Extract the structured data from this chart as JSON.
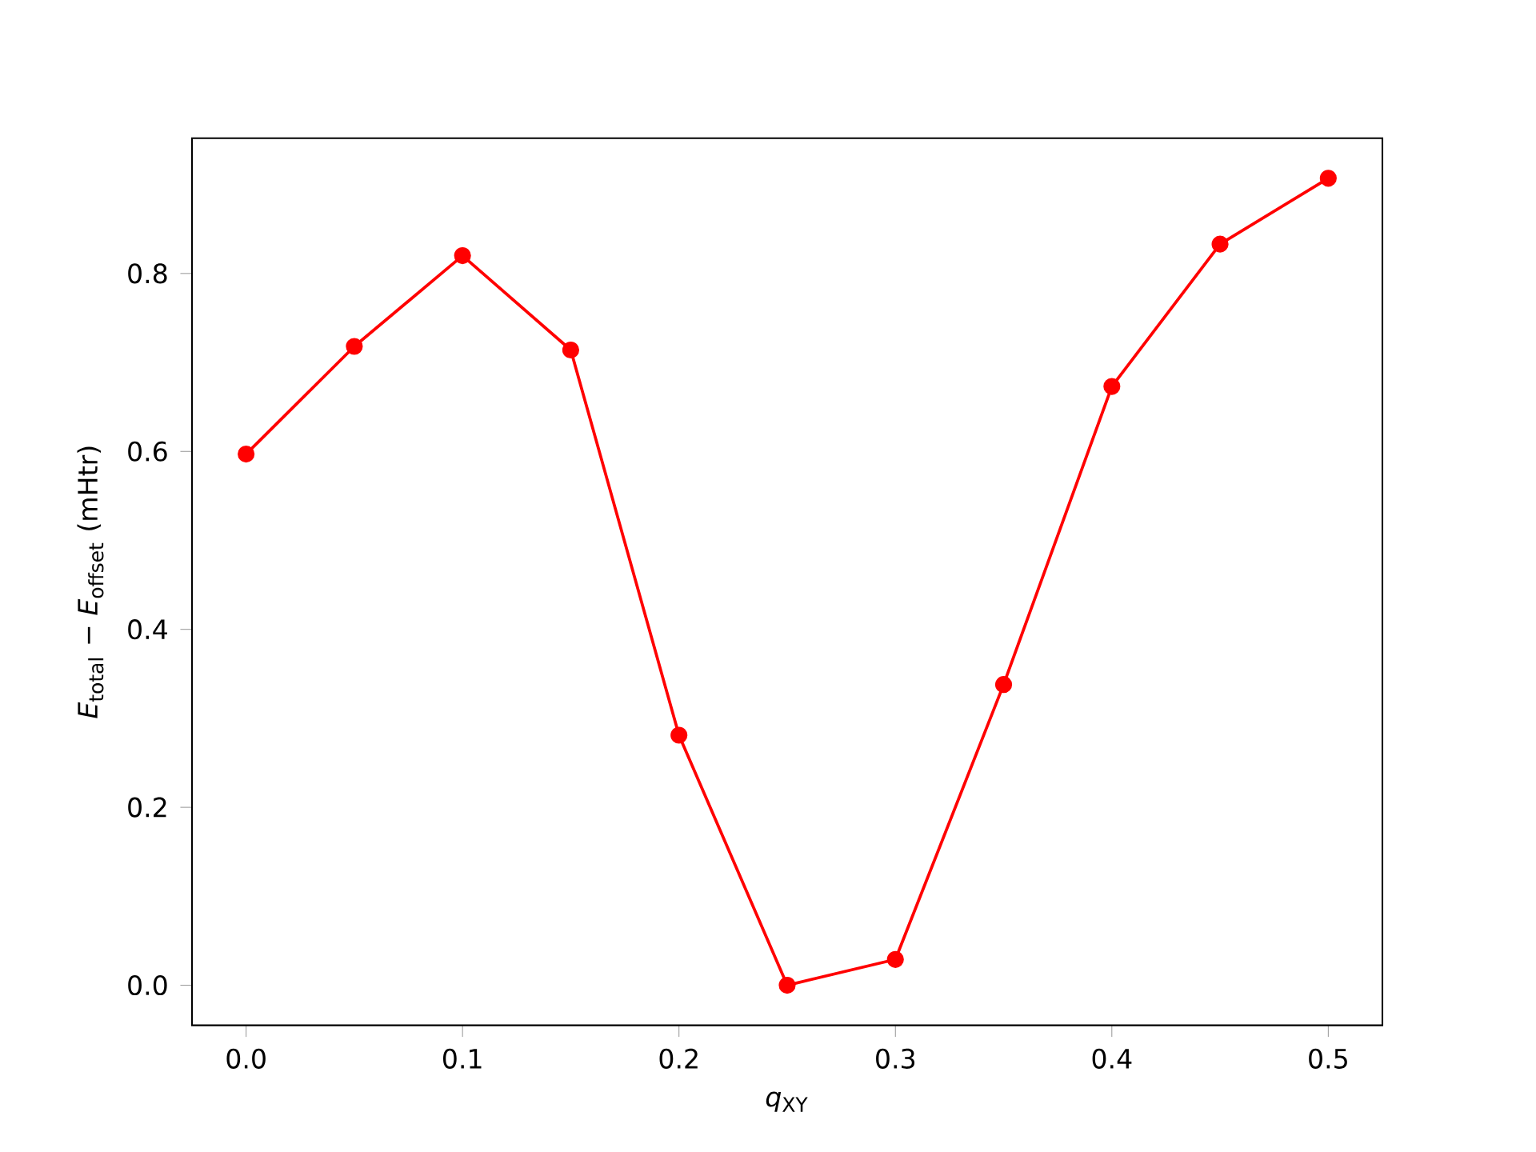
{
  "chart_data": {
    "type": "line",
    "xlabel": "*q*$_{XY}$",
    "ylabel": "*E*$_{total}$ − *E*$_{offset}$ (mHtr)",
    "x": [
      0.0,
      0.05,
      0.1,
      0.15,
      0.2,
      0.25,
      0.3,
      0.35,
      0.4,
      0.45,
      0.5
    ],
    "series": [
      {
        "color": "#ff0000",
        "values": [
          0.597,
          0.718,
          0.82,
          0.714,
          0.281,
          0.0,
          0.029,
          0.338,
          0.673,
          0.833,
          0.907
        ]
      }
    ],
    "xlim": [
      -0.025,
      0.525
    ],
    "ylim": [
      -0.045,
      0.952
    ],
    "xticks": [
      {
        "value": 0.0,
        "label": "0.0"
      },
      0.1,
      0.2,
      0.3,
      0.4,
      0.5
    ],
    "yticks": [
      {
        "value": 0.0,
        "label": "0.0"
      },
      0.2,
      0.4,
      0.6,
      0.8
    ],
    "grid": false,
    "marker": "circle",
    "line_style": "solid"
  }
}
